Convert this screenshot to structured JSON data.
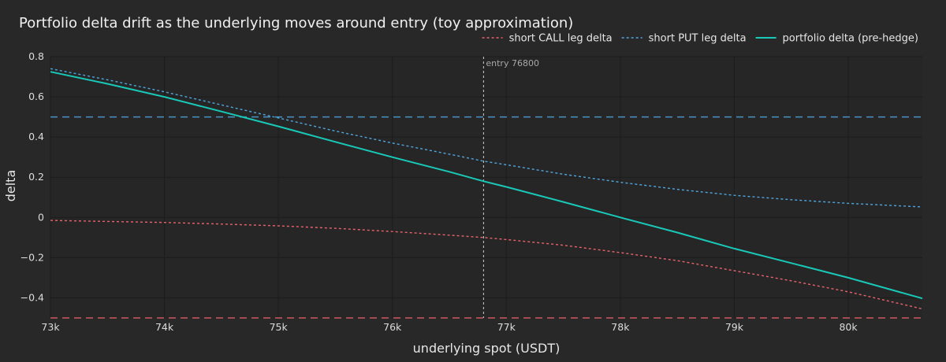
{
  "chart_data": {
    "type": "line",
    "title": "Portfolio delta drift as the underlying moves around entry (toy approximation)",
    "xlabel": "underlying spot (USDT)",
    "ylabel": "delta",
    "xlim": [
      73000,
      80650
    ],
    "ylim": [
      -0.5,
      0.8
    ],
    "x_ticks": [
      {
        "value": 73000,
        "label": "73k"
      },
      {
        "value": 74000,
        "label": "74k"
      },
      {
        "value": 75000,
        "label": "75k"
      },
      {
        "value": 76000,
        "label": "76k"
      },
      {
        "value": 77000,
        "label": "77k"
      },
      {
        "value": 78000,
        "label": "78k"
      },
      {
        "value": 79000,
        "label": "79k"
      },
      {
        "value": 80000,
        "label": "80k"
      }
    ],
    "y_ticks": [
      {
        "value": 0.8,
        "label": "0.8"
      },
      {
        "value": 0.6,
        "label": "0.6"
      },
      {
        "value": 0.4,
        "label": "0.4"
      },
      {
        "value": 0.2,
        "label": "0.2"
      },
      {
        "value": 0,
        "label": "0"
      },
      {
        "value": -0.2,
        "label": "−0.2"
      },
      {
        "value": -0.4,
        "label": "−0.4"
      }
    ],
    "grid": true,
    "legend_position": "top-right",
    "x": [
      73000,
      73500,
      74000,
      74500,
      75000,
      75500,
      76000,
      76500,
      76800,
      77000,
      77500,
      78000,
      78500,
      79000,
      79500,
      80000,
      80650
    ],
    "series": [
      {
        "name": "short CALL leg delta",
        "color": "#e8636b",
        "dash": "dot",
        "values": [
          -0.015,
          -0.02,
          -0.025,
          -0.033,
          -0.042,
          -0.054,
          -0.07,
          -0.088,
          -0.1,
          -0.11,
          -0.138,
          -0.175,
          -0.215,
          -0.265,
          -0.315,
          -0.37,
          -0.455
        ]
      },
      {
        "name": "short PUT leg delta",
        "color": "#4fa7de",
        "dash": "dot",
        "values": [
          0.74,
          0.685,
          0.625,
          0.56,
          0.495,
          0.43,
          0.37,
          0.315,
          0.28,
          0.262,
          0.215,
          0.175,
          0.14,
          0.11,
          0.088,
          0.07,
          0.052
        ]
      },
      {
        "name": "portfolio delta (pre-hedge)",
        "color": "#19c9b8",
        "dash": "solid",
        "values": [
          0.725,
          0.665,
          0.6,
          0.527,
          0.453,
          0.376,
          0.3,
          0.227,
          0.18,
          0.152,
          0.077,
          0.0,
          -0.075,
          -0.155,
          -0.227,
          -0.3,
          -0.403
        ]
      }
    ],
    "reference_lines": [
      {
        "axis": "y",
        "value": 0.5,
        "color": "#4fa7de",
        "dash": "dash"
      },
      {
        "axis": "y",
        "value": -0.5,
        "color": "#e8636b",
        "dash": "dash"
      },
      {
        "axis": "x",
        "value": 76800,
        "color": "#cfcfcf",
        "dash": "dot",
        "label": "entry 76800"
      }
    ]
  }
}
